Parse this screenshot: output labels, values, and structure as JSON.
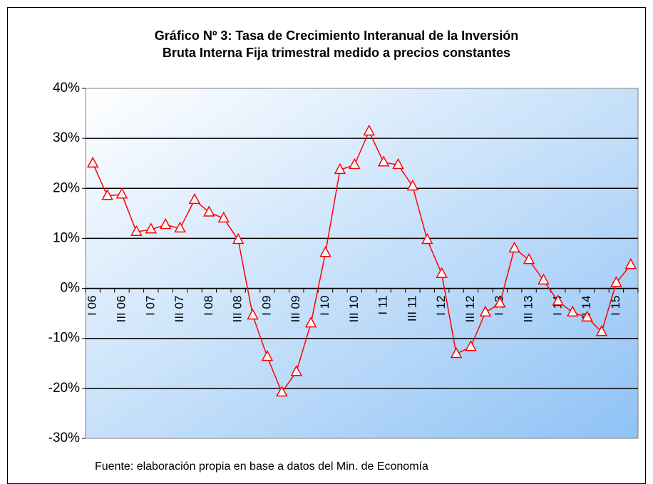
{
  "chart_data": {
    "type": "line",
    "title": "Gráfico Nº 3: Tasa de Crecimiento Interanual de la Inversión",
    "subtitle": "Bruta Interna Fija trimestral medido a precios constantes",
    "note": "Fuente: elaboración propia en base a datos del Min. de Economía",
    "categories": [
      "I 06",
      null,
      "III 06",
      null,
      "I 07",
      null,
      "III 07",
      null,
      "I 08",
      null,
      "III 08",
      null,
      "I 09",
      null,
      "III 09",
      null,
      "I 10",
      null,
      "III 10",
      null,
      "I 11",
      null,
      "III 11",
      null,
      "I 12",
      null,
      "III 12",
      null,
      "I 13",
      null,
      "III 13",
      null,
      "I 14",
      null,
      "III 14",
      null,
      "I 15",
      null
    ],
    "series": [
      {
        "color": "#ff0000",
        "values": [
          25,
          18.5,
          18.8,
          11.3,
          11.8,
          12.7,
          12,
          17.7,
          15.2,
          14,
          9.7,
          -5.4,
          -13.7,
          -20.8,
          -16.7,
          -7,
          7.1,
          23.7,
          24.7,
          31.4,
          25.2,
          24.7,
          20.4,
          9.7,
          2.9,
          -13.1,
          -11.7,
          -4.8,
          -3,
          8,
          5.7,
          1.6,
          -2.6,
          -4.8,
          -5.8,
          -8.7,
          1.1,
          4.7
        ]
      }
    ],
    "ylim": [
      -30,
      40
    ],
    "yticks": [
      {
        "value": -30,
        "label": "-30%"
      },
      {
        "value": -20,
        "label": "-20%"
      },
      {
        "value": -10,
        "label": "-10%"
      },
      {
        "value": 0,
        "label": "0%"
      },
      {
        "value": 10,
        "label": "10%"
      },
      {
        "value": 20,
        "label": "20%"
      },
      {
        "value": 30,
        "label": "30%"
      },
      {
        "value": 40,
        "label": "40%"
      }
    ],
    "grid": true
  }
}
